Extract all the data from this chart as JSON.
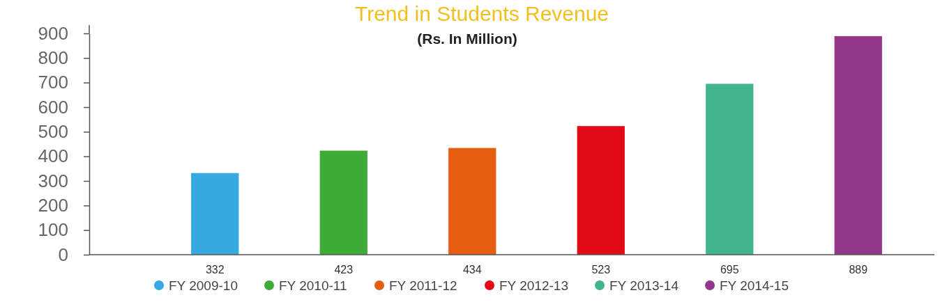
{
  "chart_data": {
    "type": "bar",
    "title": "Trend in Students Revenue",
    "subtitle": "(Rs. In Million)",
    "categories": [
      null,
      null,
      null,
      null,
      null,
      null
    ],
    "series": [
      {
        "name": "FY 2009-10",
        "color": "#36a9e1",
        "values": [
          332,
          null,
          null,
          null,
          null,
          null
        ]
      },
      {
        "name": "FY 2010-11",
        "color": "#3dab35",
        "values": [
          null,
          423,
          null,
          null,
          null,
          null
        ]
      },
      {
        "name": "FY 2011-12",
        "color": "#e85e10",
        "values": [
          null,
          null,
          434,
          null,
          null,
          null
        ]
      },
      {
        "name": "FY 2012-13",
        "color": "#e20a16",
        "values": [
          null,
          null,
          null,
          523,
          null,
          null
        ]
      },
      {
        "name": "FY 2013-14",
        "color": "#43b58e",
        "values": [
          null,
          null,
          null,
          null,
          695,
          null
        ]
      },
      {
        "name": "FY 2014-15",
        "color": "#93378b",
        "values": [
          null,
          null,
          null,
          null,
          null,
          889
        ]
      }
    ],
    "ylim": [
      0,
      900
    ],
    "yticks": [
      0,
      100,
      200,
      300,
      400,
      500,
      600,
      700,
      800,
      900
    ],
    "data_labels": true,
    "legend": "bottom"
  }
}
